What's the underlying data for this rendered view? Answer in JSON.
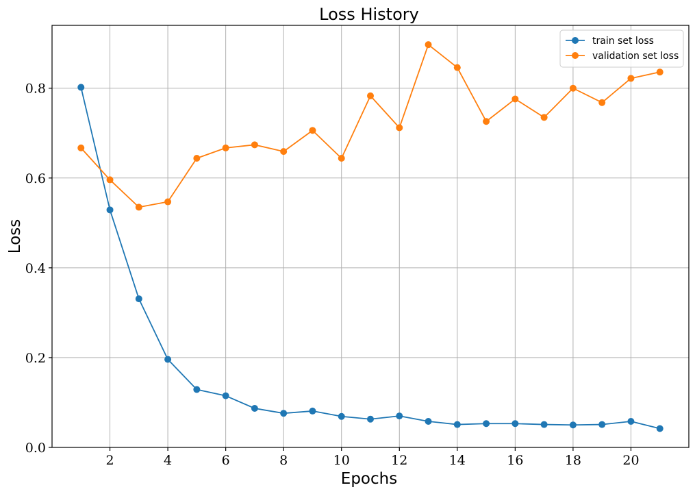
{
  "chart_data": {
    "type": "line",
    "title": "Loss History",
    "xlabel": "Epochs",
    "ylabel": "Loss",
    "xlim": [
      0.0,
      22.0
    ],
    "ylim": [
      0.0,
      0.94
    ],
    "xticks": [
      2,
      4,
      6,
      8,
      10,
      12,
      14,
      16,
      18,
      20
    ],
    "yticks": [
      0.0,
      0.2,
      0.4,
      0.6,
      0.8
    ],
    "grid": true,
    "legend_position": "top-right",
    "x": [
      1,
      2,
      3,
      4,
      5,
      6,
      7,
      8,
      9,
      10,
      11,
      12,
      13,
      14,
      15,
      16,
      17,
      18,
      19,
      20,
      21
    ],
    "series": [
      {
        "name": "train set loss",
        "color": "#1f77b4",
        "marker": "circle",
        "values": [
          0.802,
          0.529,
          0.331,
          0.196,
          0.129,
          0.115,
          0.087,
          0.076,
          0.081,
          0.069,
          0.063,
          0.07,
          0.058,
          0.051,
          0.053,
          0.053,
          0.051,
          0.05,
          0.051,
          0.058,
          0.042
        ]
      },
      {
        "name": "validation set loss",
        "color": "#ff7f0e",
        "marker": "circle",
        "values": [
          0.667,
          0.596,
          0.535,
          0.547,
          0.644,
          0.667,
          0.674,
          0.659,
          0.706,
          0.644,
          0.783,
          0.712,
          0.897,
          0.846,
          0.726,
          0.776,
          0.735,
          0.8,
          0.768,
          0.822,
          0.836
        ]
      }
    ]
  }
}
